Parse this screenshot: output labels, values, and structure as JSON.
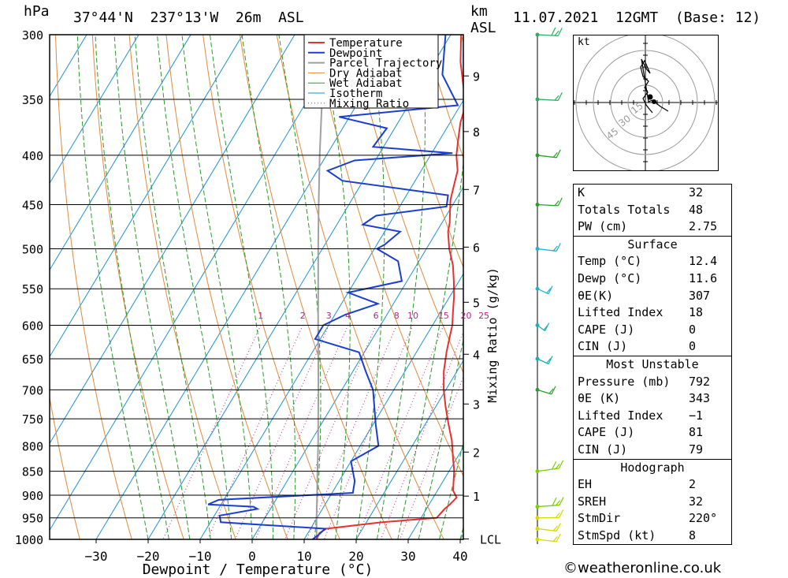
{
  "header": {
    "units_top": "hPa",
    "location": "37°44'N  237°13'W  26m  ASL",
    "km": "km",
    "asl": "ASL",
    "datetime": "11.07.2021  12GMT  (Base: 12)"
  },
  "chart_data": {
    "type": "line",
    "title": "",
    "xlabel": "Dewpoint / Temperature (°C)",
    "ylabel": "hPa",
    "x_ticks": [
      -30,
      -20,
      -10,
      0,
      10,
      20,
      30,
      40
    ],
    "x_tick_labels": [
      "−30",
      "−20",
      "−10",
      "0",
      "10",
      "20",
      "30",
      "40"
    ],
    "pressure_ticks": [
      300,
      350,
      400,
      450,
      500,
      550,
      600,
      650,
      700,
      750,
      800,
      850,
      900,
      950,
      1000
    ],
    "km_ticks": [
      {
        "label": "9",
        "p": 331
      },
      {
        "label": "8",
        "p": 378
      },
      {
        "label": "7",
        "p": 434
      },
      {
        "label": "6",
        "p": 498
      },
      {
        "label": "5",
        "p": 568
      },
      {
        "label": "4",
        "p": 643
      },
      {
        "label": "3",
        "p": 724
      },
      {
        "label": "2",
        "p": 812
      },
      {
        "label": "1",
        "p": 902
      },
      {
        "label": "LCL",
        "p": 999
      }
    ],
    "mixing_ratio_label": "Mixing Ratio (g/kg)",
    "mixing_ratio_values": [
      "1",
      "2",
      "3",
      "4",
      "6",
      "8",
      "10",
      "15",
      "20",
      "25"
    ],
    "legend": [
      "Temperature",
      "Dewpoint",
      "Parcel Trajectory",
      "Dry Adiabat",
      "Wet Adiabat",
      "Isotherm",
      "Mixing Ratio"
    ],
    "colors": {
      "temperature": "#e83030",
      "dewpoint": "#1a3fd0",
      "parcel": "#a0a0a0",
      "dry_adiabat": "#e08a3a",
      "wet_adiabat": "#2a9a2a",
      "isotherm": "#1e90d0",
      "mixing_ratio": "#c0208a"
    },
    "series": [
      {
        "name": "Temperature",
        "points": [
          [
            1000,
            12.4
          ],
          [
            985,
            12.2
          ],
          [
            975,
            13
          ],
          [
            960,
            23
          ],
          [
            950,
            33
          ],
          [
            930,
            33.5
          ],
          [
            920,
            34
          ],
          [
            905,
            34.5
          ],
          [
            890,
            33
          ],
          [
            870,
            32
          ],
          [
            850,
            31
          ],
          [
            820,
            29
          ],
          [
            790,
            27
          ],
          [
            760,
            24.5
          ],
          [
            730,
            22
          ],
          [
            700,
            19.6
          ],
          [
            670,
            17.5
          ],
          [
            640,
            15.8
          ],
          [
            620,
            14.8
          ],
          [
            600,
            13.8
          ],
          [
            580,
            12.3
          ],
          [
            560,
            10.8
          ],
          [
            540,
            9
          ],
          [
            520,
            7
          ],
          [
            500,
            4.4
          ],
          [
            480,
            2.2
          ],
          [
            470,
            1.5
          ],
          [
            460,
            0.5
          ],
          [
            445,
            -1
          ],
          [
            430,
            -2
          ],
          [
            415,
            -3
          ],
          [
            400,
            -5
          ],
          [
            385,
            -6.5
          ],
          [
            370,
            -8
          ],
          [
            355,
            -9
          ],
          [
            320,
            -15
          ],
          [
            300,
            -18
          ]
        ]
      },
      {
        "name": "Dewpoint",
        "points": [
          [
            1000,
            11.6
          ],
          [
            990,
            12.2
          ],
          [
            975,
            12.8
          ],
          [
            960,
            -8
          ],
          [
            945,
            -9
          ],
          [
            930,
            -2.5
          ],
          [
            925,
            -3.5
          ],
          [
            920,
            -12.5
          ],
          [
            910,
            -11
          ],
          [
            895,
            14
          ],
          [
            870,
            13
          ],
          [
            850,
            11.5
          ],
          [
            830,
            10
          ],
          [
            800,
            13.5
          ],
          [
            760,
            10.5
          ],
          [
            700,
            6
          ],
          [
            670,
            2.5
          ],
          [
            640,
            -1
          ],
          [
            620,
            -11
          ],
          [
            600,
            -11
          ],
          [
            585,
            -8
          ],
          [
            570,
            -3
          ],
          [
            555,
            -10
          ],
          [
            540,
            -1
          ],
          [
            515,
            -4
          ],
          [
            500,
            -9.5
          ],
          [
            495,
            -8.5
          ],
          [
            480,
            -7
          ],
          [
            472,
            -15
          ],
          [
            462,
            -13.5
          ],
          [
            452,
            -1
          ],
          [
            440,
            -2
          ],
          [
            425,
            -24
          ],
          [
            415,
            -28
          ],
          [
            405,
            -24
          ],
          [
            398,
            -6
          ],
          [
            392,
            -22
          ],
          [
            375,
            -21.5
          ],
          [
            365,
            -32
          ],
          [
            355,
            -10.5
          ],
          [
            330,
            -17
          ],
          [
            300,
            -21
          ]
        ]
      },
      {
        "name": "Parcel Trajectory",
        "points": [
          [
            1000,
            12.4
          ],
          [
            950,
            9.9
          ],
          [
            900,
            7.4
          ],
          [
            850,
            4.7
          ],
          [
            800,
            1.9
          ],
          [
            750,
            -1.2
          ],
          [
            700,
            -4.5
          ],
          [
            650,
            -8.1
          ],
          [
            600,
            -12
          ],
          [
            550,
            -16.2
          ],
          [
            500,
            -20.8
          ],
          [
            450,
            -25.8
          ],
          [
            400,
            -31.3
          ],
          [
            350,
            -37.3
          ],
          [
            300,
            -44
          ]
        ]
      }
    ],
    "wind_barbs": [
      {
        "p": 1000,
        "speed_kt": 8,
        "dir": 300
      },
      {
        "p": 975,
        "speed_kt": 10,
        "dir": 300
      },
      {
        "p": 950,
        "speed_kt": 12,
        "dir": 280
      },
      {
        "p": 925,
        "speed_kt": 15,
        "dir": 270
      },
      {
        "p": 850,
        "speed_kt": 15,
        "dir": 260
      },
      {
        "p": 700,
        "speed_kt": 10,
        "dir": 320
      },
      {
        "p": 650,
        "speed_kt": 10,
        "dir": 330
      },
      {
        "p": 600,
        "speed_kt": 8,
        "dir": 340
      },
      {
        "p": 550,
        "speed_kt": 10,
        "dir": 330
      },
      {
        "p": 500,
        "speed_kt": 10,
        "dir": 300
      },
      {
        "p": 450,
        "speed_kt": 10,
        "dir": 290
      },
      {
        "p": 400,
        "speed_kt": 10,
        "dir": 300
      },
      {
        "p": 350,
        "speed_kt": 12,
        "dir": 290
      },
      {
        "p": 300,
        "speed_kt": 15,
        "dir": 290
      }
    ]
  },
  "hodograph": {
    "unit": "kt",
    "rings": [
      "15",
      "30",
      "45"
    ]
  },
  "table": {
    "indices": [
      {
        "k": "K",
        "v": "32"
      },
      {
        "k": "Totals Totals",
        "v": "48"
      },
      {
        "k": "PW (cm)",
        "v": "2.75"
      }
    ],
    "surface_title": "Surface",
    "surface": [
      {
        "k": "Temp (°C)",
        "v": "12.4"
      },
      {
        "k": "Dewp (°C)",
        "v": "11.6"
      },
      {
        "k": "θE(K)",
        "v": "307"
      },
      {
        "k": "Lifted Index",
        "v": "18"
      },
      {
        "k": "CAPE (J)",
        "v": "0"
      },
      {
        "k": "CIN (J)",
        "v": "0"
      }
    ],
    "mu_title": "Most Unstable",
    "mu": [
      {
        "k": "Pressure (mb)",
        "v": "792"
      },
      {
        "k": "θE (K)",
        "v": "343"
      },
      {
        "k": "Lifted Index",
        "v": "−1"
      },
      {
        "k": "CAPE (J)",
        "v": "81"
      },
      {
        "k": "CIN (J)",
        "v": "79"
      }
    ],
    "hodo_title": "Hodograph",
    "hodo": [
      {
        "k": "EH",
        "v": "2"
      },
      {
        "k": "SREH",
        "v": "32"
      },
      {
        "k": "StmDir",
        "v": "220°"
      },
      {
        "k": "StmSpd (kt)",
        "v": "8"
      }
    ]
  },
  "footer": {
    "copyright": "©weatheronline.co.uk"
  }
}
